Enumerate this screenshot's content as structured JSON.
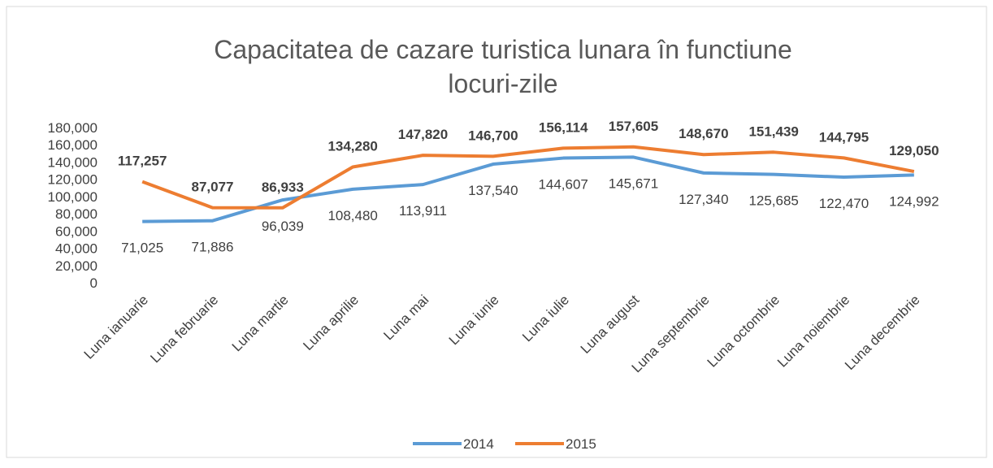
{
  "chart_data": {
    "type": "line",
    "title": "Capacitatea de cazare turistica lunara în functiune",
    "subtitle": "locuri-zile",
    "categories": [
      "Luna ianuarie",
      "Luna februarie",
      "Luna martie",
      "Luna aprilie",
      "Luna mai",
      "Luna iunie",
      "Luna iulie",
      "Luna august",
      "Luna septembrie",
      "Luna octombrie",
      "Luna noiembrie",
      "Luna decembrie"
    ],
    "series": [
      {
        "name": "2014",
        "color": "#5b9bd5",
        "values": [
          71025,
          71886,
          96039,
          108480,
          113911,
          137540,
          144607,
          145671,
          127340,
          125685,
          122470,
          124992
        ],
        "value_labels": [
          "71,025",
          "71,886",
          "96,039",
          "108,480",
          "113,911",
          "137,540",
          "144,607",
          "145,671",
          "127,340",
          "125,685",
          "122,470",
          "124,992"
        ]
      },
      {
        "name": "2015",
        "color": "#ed7d31",
        "values": [
          117257,
          87077,
          86933,
          134280,
          147820,
          146700,
          156114,
          157605,
          148670,
          151439,
          144795,
          129050
        ],
        "value_labels": [
          "117,257",
          "87,077",
          "86,933",
          "134,280",
          "147,820",
          "146,700",
          "156,114",
          "157,605",
          "148,670",
          "151,439",
          "144,795",
          "129,050"
        ]
      }
    ],
    "ylim": [
      0,
      180000
    ],
    "yticks": [
      0,
      {
        "value": 20000,
        "label": "20,000"
      },
      {
        "value": 40000,
        "label": "40,000"
      },
      {
        "value": 60000,
        "label": "60,000"
      },
      {
        "value": 80000,
        "label": "80,000"
      },
      {
        "value": 100000,
        "label": "100,000"
      },
      {
        "value": 120000,
        "label": "120,000"
      },
      {
        "value": 140000,
        "label": "140,000"
      },
      {
        "value": 160000,
        "label": "160,000"
      },
      {
        "value": 180000,
        "label": "180,000"
      }
    ],
    "legend": "bottom"
  }
}
